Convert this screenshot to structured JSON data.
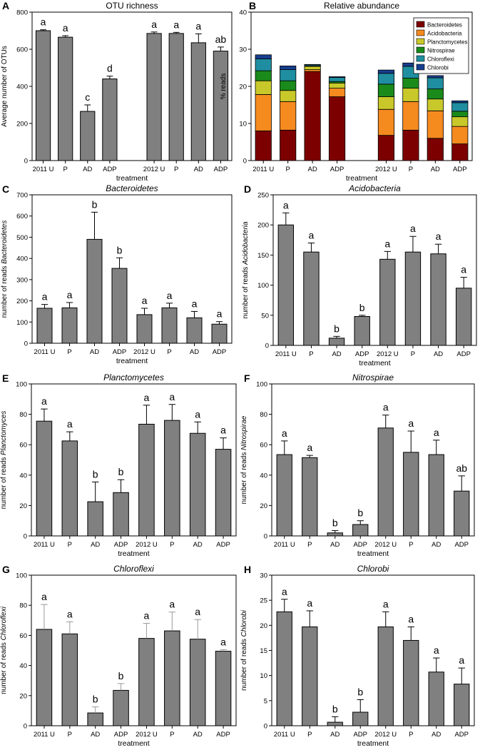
{
  "figure": {
    "panel_count": 8
  },
  "colors": {
    "bar_fill": "#808080",
    "bar_stroke": "#000000",
    "err_dark": "#000000",
    "err_light": "#9a9a9a",
    "Bacteroidetes": "#7d0000",
    "Acidobacteria": "#f58a1f",
    "Planctomycetes": "#c8c82a",
    "Nitrospirae": "#1a8a1a",
    "Chloroflexi": "#1f8ea0",
    "Chlorobi": "#173e8f"
  },
  "chart_data": [
    {
      "panel": "A",
      "type": "bar",
      "title": "OTU richness",
      "title_italic": false,
      "xlabel": "treatment",
      "ylabel": "Average number of OTUs",
      "ylim": [
        0,
        800
      ],
      "yticks": [
        0,
        200,
        400,
        600,
        800
      ],
      "categories": [
        "2011  U",
        "P",
        "AD",
        "ADP",
        "2012  U",
        "P",
        "AD",
        "ADP"
      ],
      "slots": [
        0,
        1,
        2,
        3,
        5,
        6,
        7,
        8
      ],
      "slot_count": 9,
      "bar_width_frac": 0.65,
      "error_color": "dark",
      "values": [
        700,
        665,
        265,
        440,
        685,
        685,
        635,
        590
      ],
      "errors": [
        5,
        8,
        35,
        15,
        8,
        6,
        48,
        22
      ],
      "letters": [
        "a",
        "a",
        "c",
        "d",
        "a",
        "a",
        "a",
        "ab"
      ]
    },
    {
      "panel": "B",
      "type": "stacked_bar",
      "title": "Relative abundance",
      "title_italic": false,
      "xlabel": "treatment",
      "ylabel": "% reads",
      "ylim": [
        0,
        40
      ],
      "yticks": [
        0,
        10,
        20,
        30,
        40
      ],
      "categories": [
        "2011  U",
        "P",
        "AD",
        "ADP",
        "2012  U",
        "P",
        "AD",
        "ADP"
      ],
      "slots": [
        0,
        1,
        2,
        3,
        5,
        6,
        7,
        8
      ],
      "slot_count": 9,
      "bar_width_frac": 0.65,
      "legend_position": "top-right",
      "series": [
        {
          "name": "Bacteroidetes",
          "values": [
            8.0,
            8.2,
            24.0,
            17.2,
            6.8,
            8.2,
            6.0,
            4.5
          ]
        },
        {
          "name": "Acidobacteria",
          "values": [
            9.8,
            7.7,
            0.5,
            2.3,
            7.0,
            7.7,
            7.4,
            4.7
          ]
        },
        {
          "name": "Planctomycetes",
          "values": [
            3.7,
            3.0,
            0.9,
            1.4,
            3.4,
            3.6,
            3.2,
            2.6
          ]
        },
        {
          "name": "Nitrospirae",
          "values": [
            2.7,
            2.6,
            0.1,
            0.4,
            3.4,
            2.7,
            2.7,
            1.5
          ]
        },
        {
          "name": "Chloroflexi",
          "values": [
            3.2,
            3.0,
            0.3,
            1.1,
            2.9,
            3.2,
            3.0,
            2.3
          ]
        },
        {
          "name": "Chlorobi",
          "values": [
            1.1,
            1.0,
            0.1,
            0.2,
            0.9,
            0.9,
            0.6,
            0.5
          ]
        }
      ]
    },
    {
      "panel": "C",
      "type": "bar",
      "title": "Bacteroidetes",
      "title_italic": true,
      "xlabel": "treatment",
      "ylabel_prefix": "number of reads ",
      "ylabel_taxon": "Bacteroidetes",
      "ylim": [
        0,
        700
      ],
      "yticks": [
        0,
        100,
        200,
        300,
        400,
        500,
        600,
        700
      ],
      "categories": [
        "2011 U",
        "P",
        "AD",
        "ADP",
        "2012 U",
        "P",
        "AD",
        "ADP"
      ],
      "slots": [
        0,
        1,
        2,
        3,
        4,
        5,
        6,
        7
      ],
      "slot_count": 8,
      "bar_width_frac": 0.6,
      "error_color": "dark",
      "values": [
        165,
        167,
        490,
        353,
        135,
        167,
        120,
        90
      ],
      "errors": [
        18,
        25,
        128,
        50,
        30,
        22,
        30,
        12
      ],
      "letters": [
        "a",
        "a",
        "b",
        "b",
        "a",
        "a",
        "a",
        "a"
      ]
    },
    {
      "panel": "D",
      "type": "bar",
      "title": "Acidobacteria",
      "title_italic": true,
      "xlabel": "treatment",
      "ylabel_prefix": "number of reads ",
      "ylabel_taxon": "Acidobacteria",
      "ylim": [
        0,
        250
      ],
      "yticks": [
        0,
        50,
        100,
        150,
        200,
        250
      ],
      "categories": [
        "2011 U",
        "P",
        "AD",
        "ADP",
        "2012 U",
        "P",
        "AD",
        "ADP"
      ],
      "slots": [
        0,
        1,
        2,
        3,
        4,
        5,
        6,
        7
      ],
      "slot_count": 8,
      "bar_width_frac": 0.6,
      "error_color": "dark",
      "values": [
        200,
        155,
        12,
        48,
        143,
        155,
        152,
        95
      ],
      "errors": [
        20,
        15,
        3,
        2,
        13,
        26,
        16,
        18
      ],
      "letters": [
        "a",
        "a",
        "b",
        "b",
        "a",
        "a",
        "a",
        "a"
      ]
    },
    {
      "panel": "E",
      "type": "bar",
      "title": "Planctomycetes",
      "title_italic": true,
      "xlabel": "treatment",
      "ylabel_prefix": "number of reads ",
      "ylabel_taxon": "Planctomyces",
      "ylim": [
        0,
        100
      ],
      "yticks": [
        0,
        20,
        40,
        60,
        80,
        100
      ],
      "categories": [
        "2011 U",
        "P",
        "AD",
        "ADP",
        "2012 U",
        "P",
        "AD",
        "ADP"
      ],
      "slots": [
        0,
        1,
        2,
        3,
        4,
        5,
        6,
        7
      ],
      "slot_count": 8,
      "bar_width_frac": 0.6,
      "error_color": "dark",
      "values": [
        75.5,
        62.5,
        22.5,
        28.5,
        73.5,
        76,
        67.5,
        57
      ],
      "errors": [
        8,
        6,
        13,
        8.5,
        12.5,
        10.5,
        7.5,
        7.5
      ],
      "letters": [
        "a",
        "a",
        "b",
        "b",
        "a",
        "a",
        "a",
        "a"
      ]
    },
    {
      "panel": "F",
      "type": "bar",
      "title": "Nitrospirae",
      "title_italic": true,
      "xlabel": "treatment",
      "ylabel_prefix": "number of reads ",
      "ylabel_taxon": "Nitrospirae",
      "ylim": [
        0,
        100
      ],
      "yticks": [
        0,
        20,
        40,
        60,
        80,
        100
      ],
      "categories": [
        "2011 U",
        "P",
        "AD",
        "ADP",
        "2012 U",
        "P",
        "AD",
        "ADP"
      ],
      "slots": [
        0,
        1,
        2,
        3,
        4,
        5,
        6,
        7
      ],
      "slot_count": 8,
      "bar_width_frac": 0.6,
      "error_color": "dark",
      "values": [
        53.5,
        51.5,
        2,
        7.5,
        71,
        55,
        53.5,
        29.5
      ],
      "errors": [
        9,
        1.5,
        1.5,
        2.5,
        8.5,
        14,
        9.5,
        10
      ],
      "letters": [
        "a",
        "a",
        "b",
        "b",
        "a",
        "a",
        "a",
        "ab"
      ]
    },
    {
      "panel": "G",
      "type": "bar",
      "title": "Chloroflexi",
      "title_italic": true,
      "xlabel": "treatment",
      "ylabel_prefix": "number of reads ",
      "ylabel_taxon": "Chloroflexi",
      "ylim": [
        0,
        100
      ],
      "yticks": [
        0,
        20,
        40,
        60,
        80,
        100
      ],
      "categories": [
        "2011 U",
        "P",
        "AD",
        "ADP",
        "2012 U",
        "P",
        "AD",
        "ADP"
      ],
      "slots": [
        0,
        1,
        2,
        3,
        4,
        5,
        6,
        7
      ],
      "slot_count": 8,
      "bar_width_frac": 0.6,
      "error_color": "light",
      "values": [
        64,
        61,
        8.5,
        23.5,
        58,
        63,
        57.5,
        49.5
      ],
      "errors": [
        16.5,
        8,
        4,
        4.5,
        10,
        12.5,
        13,
        1
      ],
      "letters": [
        "a",
        "a",
        "b",
        "b",
        "a",
        "a",
        "a",
        "a"
      ]
    },
    {
      "panel": "H",
      "type": "bar",
      "title": "Chlorobi",
      "title_italic": true,
      "xlabel": "treatment",
      "ylabel_prefix": "number of reads ",
      "ylabel_taxon": "Chlorobi",
      "ylim": [
        0,
        30
      ],
      "yticks": [
        0,
        5,
        10,
        15,
        20,
        25,
        30
      ],
      "categories": [
        "2011 U",
        "P",
        "AD",
        "ADP",
        "2012 U",
        "P",
        "AD",
        "ADP"
      ],
      "slots": [
        0,
        1,
        2,
        3,
        4,
        5,
        6,
        7
      ],
      "slot_count": 8,
      "bar_width_frac": 0.6,
      "error_color": "dark",
      "values": [
        22.7,
        19.7,
        0.7,
        2.7,
        19.7,
        17,
        10.7,
        8.3
      ],
      "errors": [
        2.5,
        3.2,
        1.1,
        2.5,
        3,
        2.7,
        2.8,
        3.2
      ],
      "letters": [
        "a",
        "a",
        "b",
        "b",
        "a",
        "a",
        "a",
        "a"
      ]
    }
  ]
}
